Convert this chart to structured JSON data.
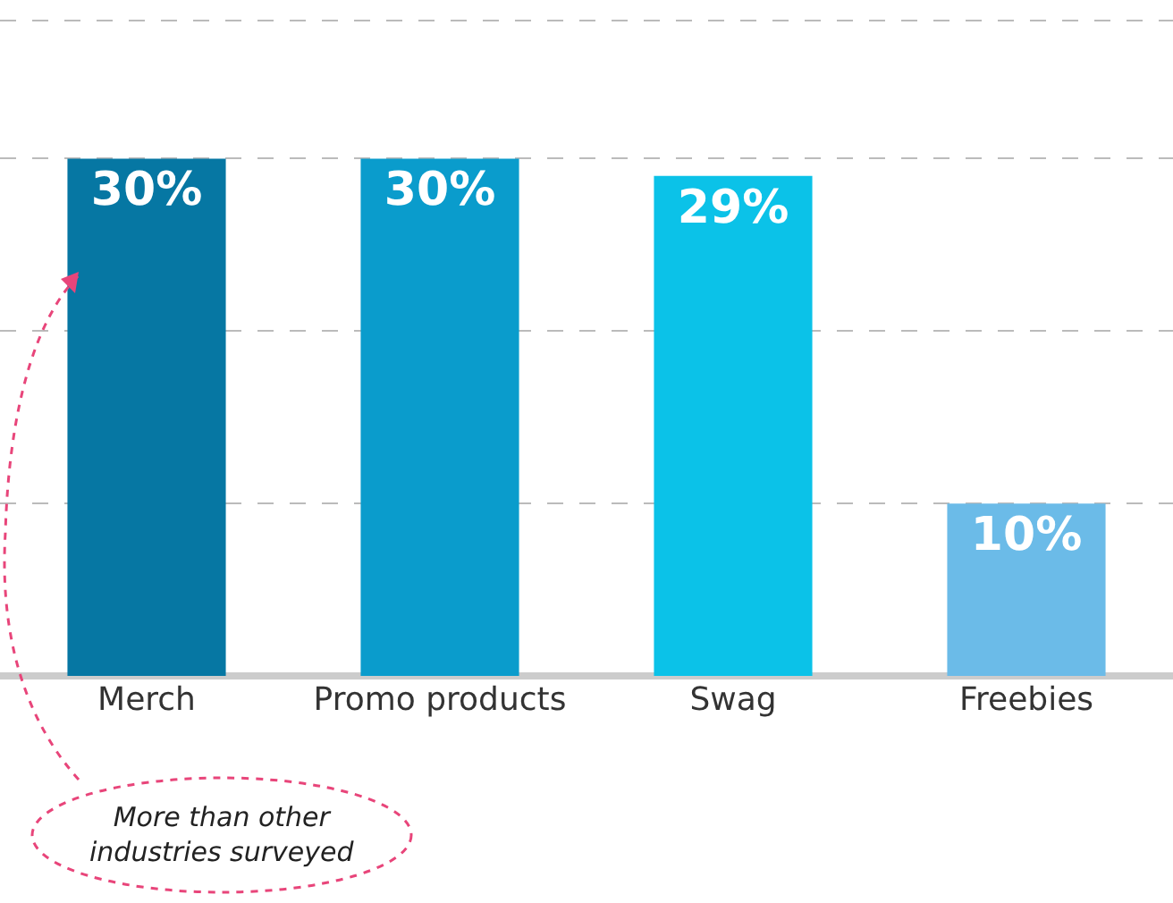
{
  "chart_data": {
    "type": "bar",
    "categories": [
      "Merch",
      "Promo products",
      "Swag",
      "Freebies"
    ],
    "values": [
      30,
      30,
      29,
      10
    ],
    "colors": [
      "#0677a3",
      "#0a9ccc",
      "#0bc2e8",
      "#6bbbe8"
    ],
    "value_labels": [
      "30%",
      "30%",
      "29%",
      "10%"
    ],
    "ylim": [
      0,
      39.2
    ],
    "yticks": [
      {
        "value": 10,
        "label": null
      },
      {
        "value": 20,
        "label": null
      },
      {
        "value": 30,
        "label": null
      },
      {
        "value": 38,
        "label": null
      }
    ],
    "grid": "y",
    "tick_labels": "x",
    "annotations": [
      "More than other\nindustries surveyed"
    ]
  }
}
